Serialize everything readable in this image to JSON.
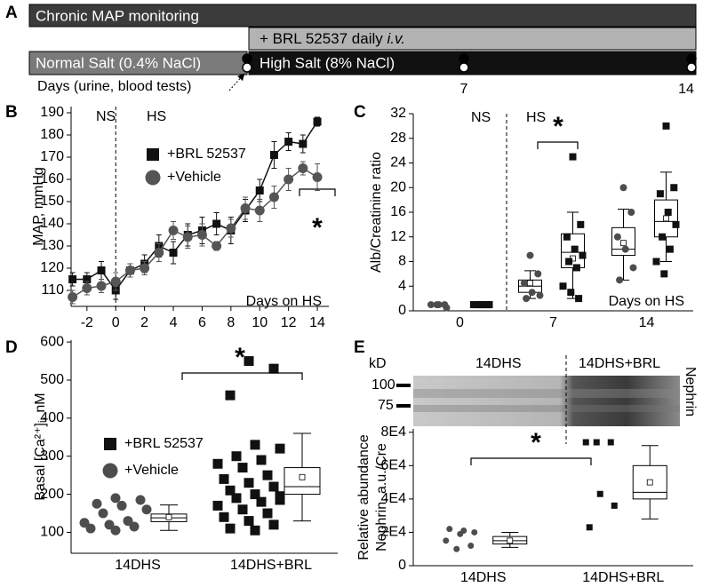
{
  "timeline": {
    "panel": "A",
    "monitoring": "Chronic MAP monitoring",
    "treatment": "+ BRL 52537 daily",
    "route": "i.v.",
    "normal_salt": "Normal Salt (0.4% NaCl)",
    "high_salt": "High Salt (8% NaCl)",
    "tests": "Days (urine, blood tests)",
    "days": [
      7,
      14
    ]
  },
  "chart_data": [
    {
      "type": "line",
      "panel": "B",
      "ylabel": "MAP, mmHg",
      "xlabel": "Days on HS",
      "annotations": {
        "before": "NS",
        "after": "HS",
        "significance": "*"
      },
      "divider": 0,
      "x": [
        -3,
        -2,
        -1,
        0,
        1,
        2,
        3,
        4,
        5,
        6,
        7,
        8,
        9,
        10,
        11,
        12,
        13,
        14
      ],
      "series": [
        {
          "name": "+BRL 52537",
          "marker": "square",
          "color": "#111111",
          "values": [
            115,
            115,
            119,
            110,
            119,
            122,
            130,
            127,
            135,
            137,
            140,
            137,
            146,
            155,
            171,
            177,
            176,
            186
          ],
          "errors": [
            3,
            3,
            4,
            4,
            3,
            4,
            5,
            5,
            5,
            6,
            5,
            6,
            5,
            5,
            6,
            4,
            4,
            2
          ]
        },
        {
          "name": "+Vehicle",
          "marker": "circle",
          "color": "#555555",
          "values": [
            107,
            111,
            112,
            114,
            119,
            120,
            127,
            137,
            134,
            135,
            130,
            138,
            147,
            146,
            152,
            160,
            165,
            161
          ],
          "errors": [
            3,
            3,
            3,
            4,
            3,
            3,
            4,
            4,
            5,
            5,
            2,
            4,
            5,
            5,
            5,
            5,
            3,
            6
          ]
        }
      ],
      "xlim": [
        -3.1,
        14.8
      ],
      "ylim": [
        102.8,
        192.8
      ],
      "xticks": [
        -2,
        0,
        2,
        4,
        6,
        8,
        10,
        12,
        14
      ],
      "yticks": [
        110,
        120,
        130,
        140,
        150,
        160,
        170,
        180,
        190
      ]
    },
    {
      "type": "box",
      "panel": "C",
      "ylabel": "Alb/Creatinine ratio",
      "xlabel": "Days on HS",
      "annotations": {
        "before": "NS",
        "after": "HS",
        "significance": "*"
      },
      "categories": [
        "0",
        "7",
        "14"
      ],
      "series": [
        {
          "marker": "circle",
          "color": "#4d4d4d",
          "points": [
            [
              1,
              1,
              1,
              1,
              0.5
            ],
            [
              9,
              6,
              4.5,
              3,
              2.5,
              2
            ],
            [
              20,
              16,
              12,
              10,
              7,
              5
            ]
          ],
          "boxes": [
            null,
            {
              "low": 2,
              "q1": 3,
              "median": 4,
              "q3": 5,
              "high": 6.5,
              "mean": 4.5
            },
            {
              "low": 5,
              "q1": 9,
              "median": 10,
              "q3": 13.5,
              "high": 16.5,
              "mean": 11
            }
          ]
        },
        {
          "marker": "square",
          "color": "#111111",
          "points": [
            [
              1,
              1,
              1,
              1,
              1
            ],
            [
              25,
              14,
              12,
              10,
              9,
              8,
              7,
              4,
              3,
              2
            ],
            [
              30,
              20,
              19,
              16,
              14,
              12,
              10,
              8,
              6
            ]
          ],
          "boxes": [
            null,
            {
              "low": 2,
              "q1": 7,
              "median": 9.5,
              "q3": 12.5,
              "high": 16,
              "mean": 8.5
            },
            {
              "low": 8,
              "q1": 12,
              "median": 14.5,
              "q3": 18,
              "high": 22.5,
              "mean": 15
            }
          ]
        }
      ],
      "ylim": [
        0,
        32
      ],
      "yticks": [
        0,
        4,
        8,
        12,
        16,
        20,
        24,
        28,
        32
      ]
    },
    {
      "type": "box",
      "panel": "D",
      "ylabel": "Basal [Ca²⁺]ᵢ, nM",
      "annotations": {
        "significance": "*"
      },
      "categories": [
        "14DHS",
        "14DHS+BRL"
      ],
      "series": [
        {
          "name": "+BRL 52537",
          "marker": "square",
          "color": "#111111",
          "points": [
            null,
            [
              550,
              530,
              460,
              330,
              320,
              300,
              290,
              280,
              270,
              250,
              240,
              230,
              220,
              210,
              200,
              195,
              190,
              180,
              170,
              160,
              150,
              140,
              130,
              120,
              110,
              105,
              185
            ]
          ],
          "boxes": [
            null,
            {
              "low": 130,
              "q1": 200,
              "median": 220,
              "q3": 270,
              "high": 360,
              "mean": 245
            }
          ]
        },
        {
          "name": "+Vehicle",
          "marker": "circle",
          "color": "#4d4d4d",
          "points": [
            [
              190,
              185,
              175,
              170,
              160,
              150,
              130,
              125,
              120,
              115,
              110,
              105
            ],
            null
          ],
          "boxes": [
            {
              "low": 105,
              "q1": 128,
              "median": 138,
              "q3": 148,
              "high": 172,
              "mean": 140
            },
            null
          ]
        }
      ],
      "ylim": [
        45,
        605
      ],
      "yticks": [
        100,
        200,
        300,
        400,
        500,
        600
      ]
    },
    {
      "type": "box",
      "panel": "E",
      "ylabel": [
        "Relative abundance",
        "Nephrin, a.u./Cre"
      ],
      "annotations": {
        "significance": "*"
      },
      "blot": {
        "size_label": "kD",
        "markers": [
          100,
          75
        ],
        "lanes": [
          "14DHS",
          "14DHS+BRL"
        ],
        "protein": "Nephrin"
      },
      "categories": [
        "14DHS",
        "14DHS+BRL"
      ],
      "series": [
        {
          "marker": "circle",
          "color": "#4d4d4d",
          "points": [
            [
              10000,
              12000,
              15000,
              19000,
              20000,
              22000,
              21000
            ],
            null
          ],
          "boxes": [
            {
              "low": 11000,
              "q1": 13000,
              "median": 15000,
              "q3": 17500,
              "high": 20000,
              "mean": 15000
            },
            null
          ]
        },
        {
          "marker": "square",
          "color": "#111111",
          "points": [
            null,
            [
              74000,
              74000,
              74000,
              43000,
              36000,
              23000
            ]
          ],
          "boxes": [
            null,
            {
              "low": 28000,
              "q1": 40000,
              "median": 44000,
              "q3": 60000,
              "high": 72000,
              "mean": 50000
            }
          ]
        }
      ],
      "ylim": [
        0,
        82000
      ],
      "yticks": [
        0,
        {
          "value": 20000,
          "label": "2E4"
        },
        {
          "value": 40000,
          "label": "4E4"
        },
        {
          "value": 60000,
          "label": "6E4"
        },
        {
          "value": 80000,
          "label": "8E4"
        }
      ]
    }
  ]
}
